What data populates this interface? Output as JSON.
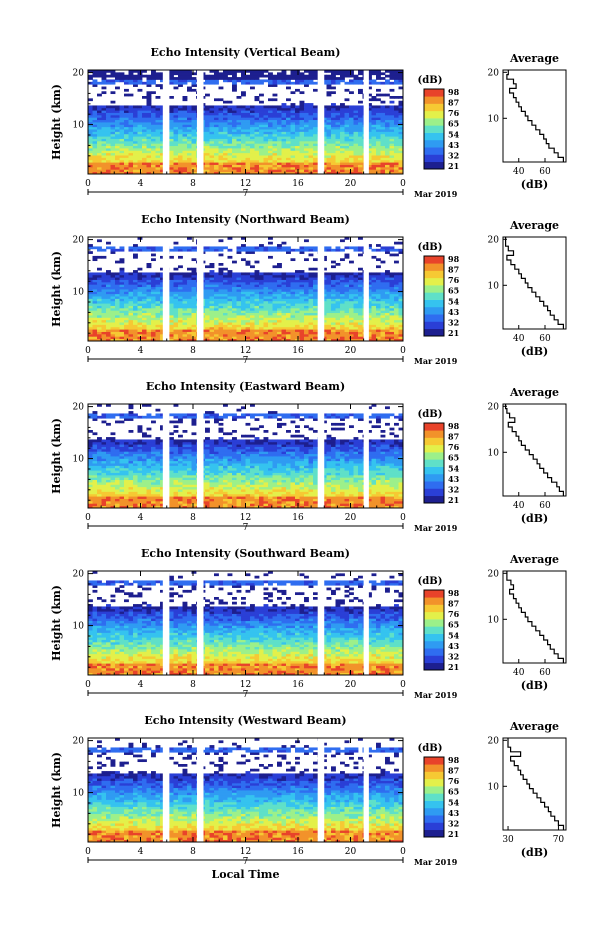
{
  "colorbar": {
    "unit_label": "(dB)",
    "tick_labels": [
      "98",
      "87",
      "76",
      "65",
      "54",
      "43",
      "32",
      "21"
    ],
    "colors": [
      "#1d1f8f",
      "#2a3fd6",
      "#2f6df0",
      "#2f9bf2",
      "#35c3ef",
      "#5fe0c8",
      "#9cf08a",
      "#e3f04a",
      "#f6c933",
      "#f2922a",
      "#e8432a"
    ]
  },
  "shared": {
    "x_ticks": [
      "0",
      "4",
      "8",
      "12",
      "16",
      "20",
      "0"
    ],
    "date_mid": "7",
    "date_label": "Mar 2019",
    "x_axis_label": "Local Time",
    "y_label": "Height (km)",
    "y_ticks": [
      "20",
      "10"
    ],
    "avg_title": "Average",
    "avg_xlabel": "(dB)"
  },
  "chart_data": [
    {
      "type": "heatmap",
      "title": "Echo Intensity (Vertical Beam)",
      "xlim": [
        0,
        24
      ],
      "ylim": [
        0.5,
        20.5
      ],
      "gaps_hours": [
        [
          5.7,
          6.2
        ],
        [
          8.3,
          8.8
        ],
        [
          17.5,
          18.0
        ],
        [
          21.0,
          21.4
        ]
      ],
      "average_profile": {
        "xticks": [
          "40",
          "60"
        ],
        "xtick_values": [
          40,
          60
        ],
        "xlim": [
          28,
          76
        ],
        "height_km": [
          20,
          19,
          18,
          17,
          16,
          15,
          14,
          13,
          12,
          11,
          10,
          9,
          8,
          7,
          6,
          5,
          4,
          3,
          2,
          1
        ],
        "db": [
          32,
          31,
          36,
          38,
          33,
          36,
          38,
          40,
          42,
          45,
          47,
          50,
          53,
          56,
          59,
          61,
          63,
          67,
          70,
          74
        ]
      }
    },
    {
      "type": "heatmap",
      "title": "Echo Intensity (Northward Beam)",
      "xlim": [
        0,
        24
      ],
      "ylim": [
        0.5,
        20.5
      ],
      "gaps_hours": [
        [
          5.7,
          6.2
        ],
        [
          8.3,
          8.8
        ],
        [
          17.5,
          18.0
        ],
        [
          21.0,
          21.4
        ]
      ],
      "average_profile": {
        "xticks": [
          "40",
          "60"
        ],
        "xtick_values": [
          40,
          60
        ],
        "xlim": [
          28,
          76
        ],
        "height_km": [
          20,
          19,
          18,
          17,
          16,
          15,
          14,
          13,
          12,
          11,
          10,
          9,
          8,
          7,
          6,
          5,
          4,
          3,
          2,
          1
        ],
        "db": [
          30,
          30,
          32,
          36,
          31,
          34,
          37,
          40,
          42,
          45,
          47,
          50,
          53,
          56,
          59,
          62,
          64,
          67,
          70,
          74
        ]
      }
    },
    {
      "type": "heatmap",
      "title": "Echo Intensity (Eastward Beam)",
      "xlim": [
        0,
        24
      ],
      "ylim": [
        0.5,
        20.5
      ],
      "gaps_hours": [
        [
          5.7,
          6.2
        ],
        [
          8.3,
          8.8
        ],
        [
          17.5,
          18.0
        ],
        [
          21.0,
          21.4
        ]
      ],
      "average_profile": {
        "xticks": [
          "40",
          "60"
        ],
        "xtick_values": [
          40,
          60
        ],
        "xlim": [
          28,
          76
        ],
        "height_km": [
          20,
          19,
          18,
          17,
          16,
          15,
          14,
          13,
          12,
          11,
          10,
          9,
          8,
          7,
          6,
          5,
          4,
          3,
          2,
          1
        ],
        "db": [
          30,
          31,
          33,
          37,
          32,
          35,
          38,
          40,
          42,
          45,
          48,
          51,
          54,
          56,
          59,
          62,
          65,
          69,
          71,
          74
        ]
      }
    },
    {
      "type": "heatmap",
      "title": "Echo Intensity (Southward Beam)",
      "xlim": [
        0,
        24
      ],
      "ylim": [
        0.5,
        20.5
      ],
      "gaps_hours": [
        [
          5.7,
          6.2
        ],
        [
          8.3,
          8.8
        ],
        [
          17.5,
          18.0
        ],
        [
          21.0,
          21.4
        ]
      ],
      "average_profile": {
        "xticks": [
          "40",
          "60"
        ],
        "xtick_values": [
          40,
          60
        ],
        "xlim": [
          28,
          76
        ],
        "height_km": [
          20,
          19,
          18,
          17,
          16,
          15,
          14,
          13,
          12,
          11,
          10,
          9,
          8,
          7,
          6,
          5,
          4,
          3,
          2,
          1
        ],
        "db": [
          31,
          31,
          34,
          36,
          33,
          36,
          38,
          40,
          42,
          45,
          47,
          50,
          53,
          56,
          59,
          62,
          64,
          67,
          70,
          74
        ]
      }
    },
    {
      "type": "heatmap",
      "title": "Echo Intensity (Westward Beam)",
      "xlim": [
        0,
        24
      ],
      "ylim": [
        0.5,
        20.5
      ],
      "gaps_hours": [
        [
          5.7,
          6.2
        ],
        [
          8.3,
          8.8
        ],
        [
          17.5,
          18.0
        ],
        [
          21.0,
          21.4
        ]
      ],
      "average_profile": {
        "xticks": [
          "30",
          "70"
        ],
        "xtick_values": [
          30,
          70
        ],
        "xlim": [
          26,
          76
        ],
        "height_km": [
          20,
          19,
          18,
          17,
          16,
          15,
          14,
          13,
          12,
          11,
          10,
          9,
          8,
          7,
          6,
          5,
          4,
          3,
          2,
          1
        ],
        "db": [
          30,
          30,
          32,
          40,
          32,
          35,
          38,
          40,
          42,
          45,
          47,
          50,
          53,
          56,
          59,
          62,
          64,
          67,
          70,
          74
        ]
      }
    }
  ]
}
